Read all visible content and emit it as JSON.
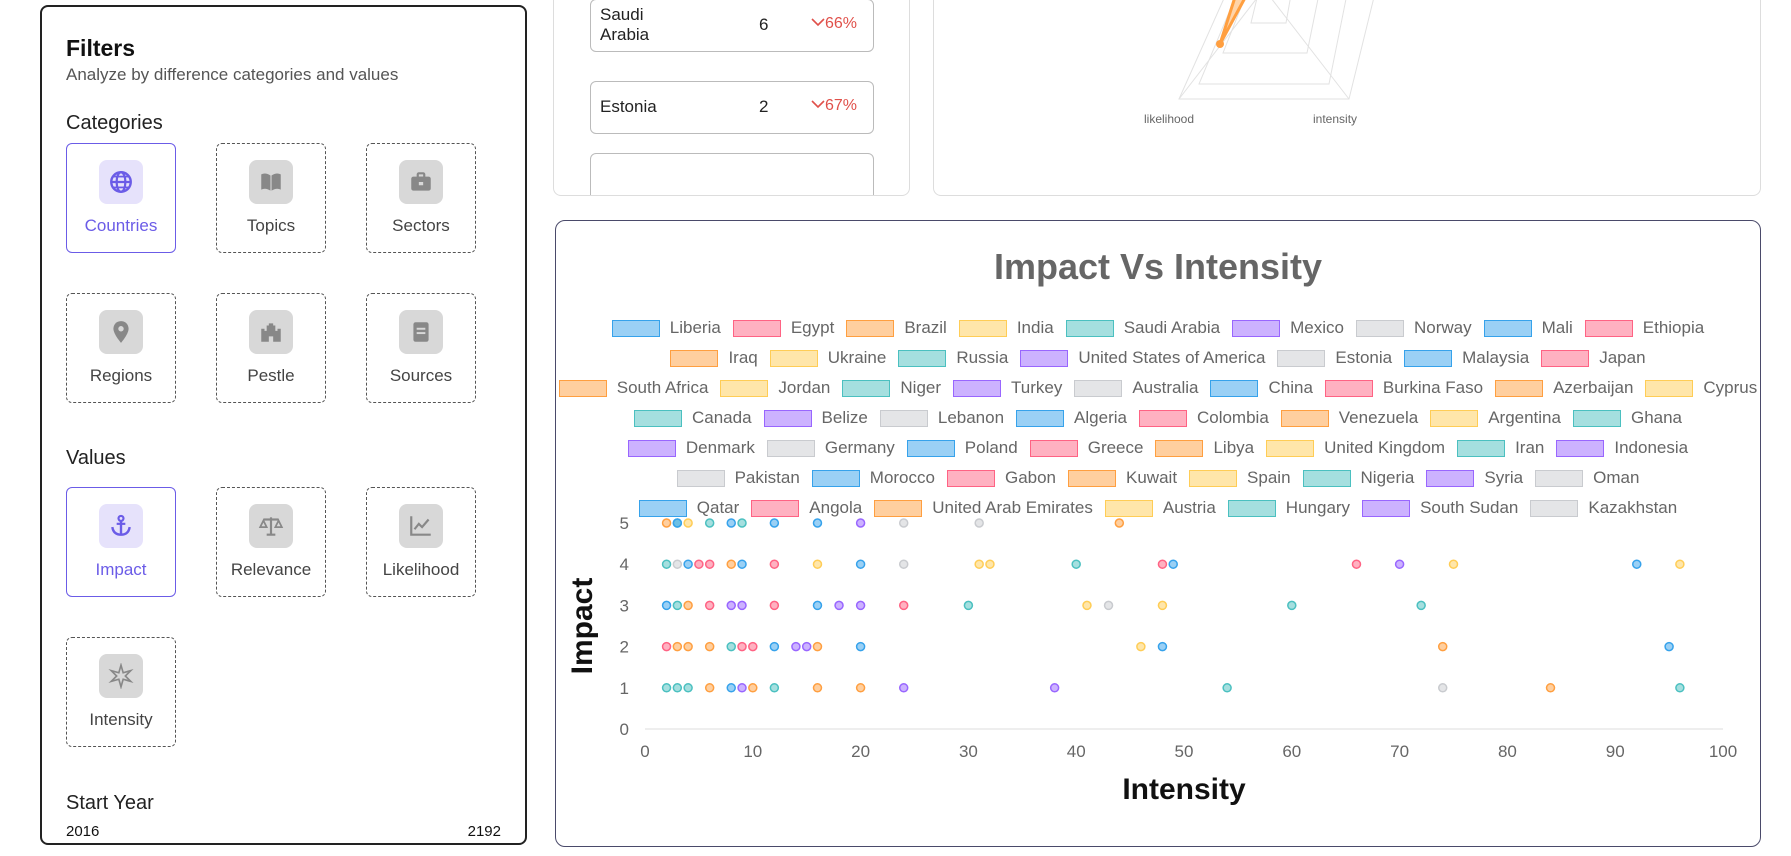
{
  "filters": {
    "title": "Filters",
    "subtitle": "Analyze by difference categories and values",
    "categories_title": "Categories",
    "values_title": "Values",
    "start_year_title": "Start Year",
    "categories": [
      {
        "label": "Countries",
        "icon": "globe-icon",
        "active": true
      },
      {
        "label": "Topics",
        "icon": "book-icon",
        "active": false
      },
      {
        "label": "Sectors",
        "icon": "briefcase-icon",
        "active": false
      },
      {
        "label": "Regions",
        "icon": "map-pin-icon",
        "active": false
      },
      {
        "label": "Pestle",
        "icon": "castle-icon",
        "active": false
      },
      {
        "label": "Sources",
        "icon": "document-icon",
        "active": false
      }
    ],
    "values": [
      {
        "label": "Impact",
        "icon": "anchor-icon",
        "active": true
      },
      {
        "label": "Relevance",
        "icon": "scale-icon",
        "active": false
      },
      {
        "label": "Likelihood",
        "icon": "chart-icon",
        "active": false
      },
      {
        "label": "Intensity",
        "icon": "starburst-icon",
        "active": false
      }
    ],
    "year_min": "2016",
    "year_max": "2192"
  },
  "country_list": [
    {
      "name_line1": "Saudi",
      "name_line2": "Arabia",
      "count": "6",
      "change": "66%",
      "arrow": "chevron-down-icon"
    },
    {
      "name_line1": "Estonia",
      "name_line2": "",
      "count": "2",
      "change": "67%",
      "arrow": "chevron-down-icon"
    }
  ],
  "radar": {
    "labels": [
      "likelihood",
      "intensity"
    ]
  },
  "palette": [
    {
      "fill": "rgba(54,162,235,0.5)",
      "stroke": "#36a2eb"
    },
    {
      "fill": "rgba(255,99,132,0.5)",
      "stroke": "#ff6384"
    },
    {
      "fill": "rgba(255,159,64,0.5)",
      "stroke": "#ff9f40"
    },
    {
      "fill": "rgba(255,205,86,0.5)",
      "stroke": "#ffcd56"
    },
    {
      "fill": "rgba(75,192,192,0.5)",
      "stroke": "#4bc0c0"
    },
    {
      "fill": "rgba(153,102,255,0.5)",
      "stroke": "#9966ff"
    },
    {
      "fill": "rgba(201,203,207,0.5)",
      "stroke": "#c9cbcf"
    }
  ],
  "chart_data": {
    "type": "scatter",
    "title": "Impact Vs Intensity",
    "xlabel": "Intensity",
    "ylabel": "Impact",
    "xlim": [
      0,
      100
    ],
    "ylim": [
      0,
      5
    ],
    "xticks": [
      0,
      10,
      20,
      30,
      40,
      50,
      60,
      70,
      80,
      90,
      100
    ],
    "yticks": [
      0,
      1,
      2,
      3,
      4,
      5
    ],
    "grid": false,
    "legend_position": "top",
    "legend": [
      "Liberia",
      "Egypt",
      "Brazil",
      "India",
      "Saudi Arabia",
      "Mexico",
      "Norway",
      "Mali",
      "Ethiopia",
      "Iraq",
      "Ukraine",
      "Russia",
      "United States of America",
      "Estonia",
      "Malaysia",
      "Japan",
      "South Africa",
      "Jordan",
      "Niger",
      "Turkey",
      "Australia",
      "China",
      "Burkina Faso",
      "Azerbaijan",
      "Cyprus",
      "Canada",
      "Belize",
      "Lebanon",
      "Algeria",
      "Colombia",
      "Venezuela",
      "Argentina",
      "Ghana",
      "Denmark",
      "Germany",
      "Poland",
      "Greece",
      "Libya",
      "United Kingdom",
      "Iran",
      "Indonesia",
      "Pakistan",
      "Morocco",
      "Gabon",
      "Kuwait",
      "Spain",
      "Nigeria",
      "Syria",
      "Oman",
      "Qatar",
      "Angola",
      "United Arab Emirates",
      "Austria",
      "Hungary",
      "South Sudan",
      "Kazakhstan"
    ],
    "legend_rows": [
      9,
      7,
      9,
      8,
      8,
      8,
      7
    ],
    "points": [
      [
        2,
        5,
        2
      ],
      [
        3,
        5,
        4
      ],
      [
        3,
        5,
        0
      ],
      [
        4,
        5,
        3
      ],
      [
        6,
        5,
        4
      ],
      [
        8,
        5,
        0
      ],
      [
        9,
        5,
        4
      ],
      [
        12,
        5,
        0
      ],
      [
        16,
        5,
        0
      ],
      [
        20,
        5,
        5
      ],
      [
        24,
        5,
        6
      ],
      [
        31,
        5,
        6
      ],
      [
        44,
        5,
        2
      ],
      [
        2,
        4,
        4
      ],
      [
        3,
        4,
        6
      ],
      [
        4,
        4,
        0
      ],
      [
        5,
        4,
        1
      ],
      [
        6,
        4,
        1
      ],
      [
        8,
        4,
        2
      ],
      [
        9,
        4,
        0
      ],
      [
        12,
        4,
        1
      ],
      [
        16,
        4,
        3
      ],
      [
        20,
        4,
        0
      ],
      [
        24,
        4,
        6
      ],
      [
        31,
        4,
        3
      ],
      [
        32,
        4,
        3
      ],
      [
        40,
        4,
        4
      ],
      [
        48,
        4,
        1
      ],
      [
        49,
        4,
        0
      ],
      [
        66,
        4,
        1
      ],
      [
        70,
        4,
        5
      ],
      [
        75,
        4,
        3
      ],
      [
        92,
        4,
        0
      ],
      [
        96,
        4,
        3
      ],
      [
        2,
        3,
        0
      ],
      [
        3,
        3,
        4
      ],
      [
        4,
        3,
        2
      ],
      [
        6,
        3,
        1
      ],
      [
        8,
        3,
        5
      ],
      [
        9,
        3,
        5
      ],
      [
        12,
        3,
        1
      ],
      [
        16,
        3,
        0
      ],
      [
        18,
        3,
        5
      ],
      [
        20,
        3,
        5
      ],
      [
        24,
        3,
        1
      ],
      [
        30,
        3,
        4
      ],
      [
        41,
        3,
        3
      ],
      [
        43,
        3,
        6
      ],
      [
        48,
        3,
        3
      ],
      [
        60,
        3,
        4
      ],
      [
        72,
        3,
        4
      ],
      [
        2,
        2,
        1
      ],
      [
        3,
        2,
        2
      ],
      [
        4,
        2,
        2
      ],
      [
        6,
        2,
        2
      ],
      [
        8,
        2,
        4
      ],
      [
        9,
        2,
        1
      ],
      [
        10,
        2,
        1
      ],
      [
        12,
        2,
        0
      ],
      [
        14,
        2,
        5
      ],
      [
        15,
        2,
        5
      ],
      [
        16,
        2,
        2
      ],
      [
        20,
        2,
        0
      ],
      [
        46,
        2,
        3
      ],
      [
        48,
        2,
        0
      ],
      [
        74,
        2,
        2
      ],
      [
        95,
        2,
        0
      ],
      [
        2,
        1,
        4
      ],
      [
        3,
        1,
        4
      ],
      [
        4,
        1,
        4
      ],
      [
        6,
        1,
        2
      ],
      [
        8,
        1,
        0
      ],
      [
        9,
        1,
        5
      ],
      [
        10,
        1,
        2
      ],
      [
        12,
        1,
        4
      ],
      [
        16,
        1,
        2
      ],
      [
        20,
        1,
        2
      ],
      [
        24,
        1,
        5
      ],
      [
        38,
        1,
        5
      ],
      [
        54,
        1,
        4
      ],
      [
        74,
        1,
        6
      ],
      [
        84,
        1,
        2
      ],
      [
        96,
        1,
        4
      ]
    ]
  }
}
